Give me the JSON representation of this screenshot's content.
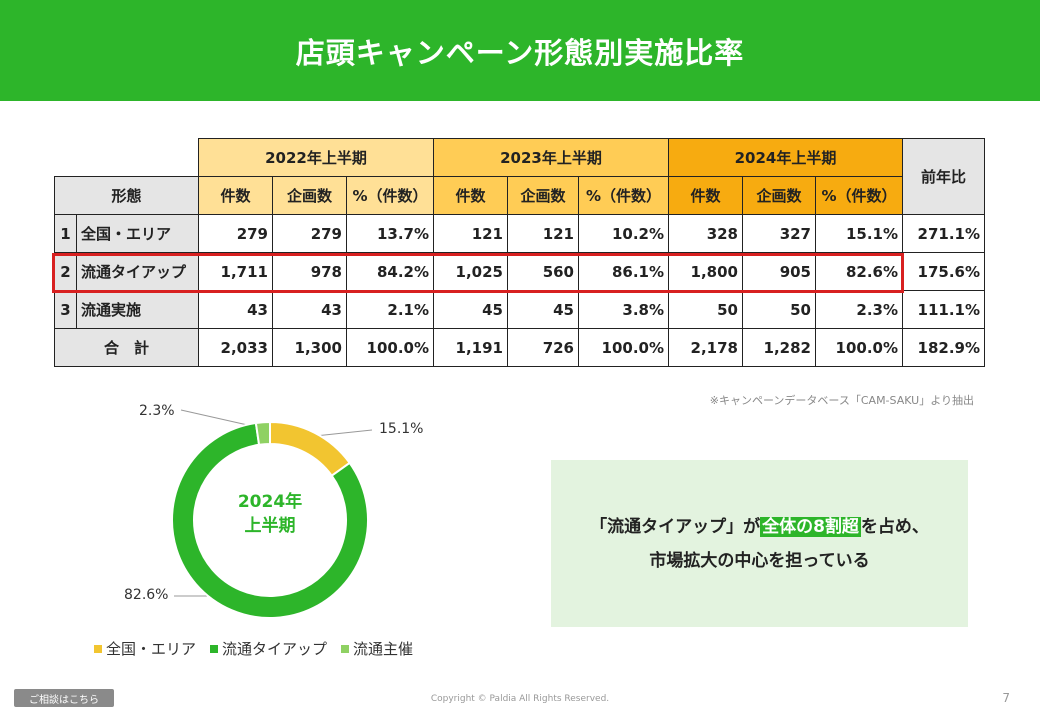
{
  "title": "店頭キャンペーン形態別実施比率",
  "table": {
    "year_headers": [
      "2022年上半期",
      "2023年上半期",
      "2024年上半期"
    ],
    "yoy_header": "前年比",
    "type_header": "形態",
    "sub_headers": [
      "件数",
      "企画数",
      "%（件数）"
    ],
    "rows": [
      {
        "no": "1",
        "label": "全国・エリア",
        "cells": [
          "279",
          "279",
          "13.7%",
          "121",
          "121",
          "10.2%",
          "328",
          "327",
          "15.1%"
        ],
        "yoy": "271.1%"
      },
      {
        "no": "2",
        "label": "流通タイアップ",
        "cells": [
          "1,711",
          "978",
          "84.2%",
          "1,025",
          "560",
          "86.1%",
          "1,800",
          "905",
          "82.6%"
        ],
        "yoy": "175.6%"
      },
      {
        "no": "3",
        "label": "流通実施",
        "cells": [
          "43",
          "43",
          "2.1%",
          "45",
          "45",
          "3.8%",
          "50",
          "50",
          "2.3%"
        ],
        "yoy": "111.1%"
      }
    ],
    "total": {
      "label": "合　計",
      "cells": [
        "2,033",
        "1,300",
        "100.0%",
        "1,191",
        "726",
        "100.0%",
        "2,178",
        "1,282",
        "100.0%"
      ],
      "yoy": "182.9%"
    }
  },
  "source_note": "※キャンペーンデータベース「CAM-SAKU」より抽出",
  "chart_data": {
    "type": "pie",
    "donut": true,
    "center_label": [
      "2024年",
      "上半期"
    ],
    "slices": [
      {
        "name": "全国・エリア",
        "value": 15.1,
        "label": "15.1%",
        "color": "#f2c530"
      },
      {
        "name": "流通タイアップ",
        "value": 82.6,
        "label": "82.6%",
        "color": "#2db52a"
      },
      {
        "name": "流通主催",
        "value": 2.3,
        "label": "2.3%",
        "color": "#8fd163"
      }
    ],
    "legend_position": "bottom"
  },
  "message": {
    "line1_prefix": "「流通タイアップ」が",
    "line1_highlight": "全体の8割超",
    "line1_suffix": "を占め、",
    "line2": "市場拡大の中心を担っている"
  },
  "footer": {
    "consult_button": "ご相談はこちら",
    "copyright": "Copyright © Paldia All Rights Reserved.",
    "page_number": "7"
  },
  "colors": {
    "accent": "#2db52a",
    "highlight_border": "#d82020",
    "y2022": "#ffe096",
    "y2023": "#ffcc55",
    "y2024": "#f7ab10"
  }
}
